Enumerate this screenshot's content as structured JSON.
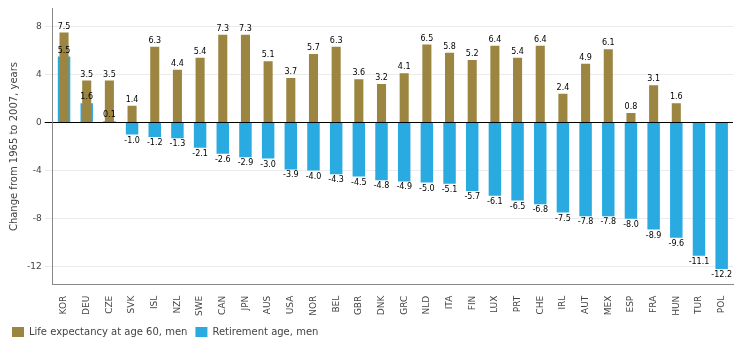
{
  "chart_data": {
    "type": "bar",
    "ylabel": "Change from 1965 to 2007, years",
    "categories": [
      "KOR",
      "DEU",
      "CZE",
      "SVK",
      "ISL",
      "NZL",
      "SWE",
      "CAN",
      "JPN",
      "AUS",
      "USA",
      "NOR",
      "BEL",
      "GBR",
      "DNK",
      "GRC",
      "NLD",
      "ITA",
      "FIN",
      "LUX",
      "PRT",
      "CHE",
      "IRL",
      "AUT",
      "MEX",
      "ESP",
      "FRA",
      "HUN",
      "TUR",
      "POL"
    ],
    "series": [
      {
        "name": "Life expectancy at age 60, men",
        "color": "#9B8540",
        "values": [
          7.5,
          3.5,
          3.5,
          1.4,
          6.3,
          4.4,
          5.4,
          7.3,
          7.3,
          5.1,
          3.7,
          5.7,
          6.3,
          3.6,
          3.2,
          4.1,
          6.5,
          5.8,
          5.2,
          6.4,
          5.4,
          6.4,
          2.4,
          4.9,
          6.1,
          0.8,
          3.1,
          1.6,
          0,
          0
        ],
        "value_labels": [
          "7.5",
          "3.5",
          "3.5",
          "1.4",
          "6.3",
          "4.4",
          "5.4",
          "7.3",
          "7.3",
          "5.1",
          "3.7",
          "5.7",
          "6.3",
          "3.6",
          "3.2",
          "4.1",
          "6.5",
          "5.8",
          "5.2",
          "6.4",
          "5.4",
          "6.4",
          "2.4",
          "4.9",
          "6.1",
          "0.8",
          "3.1",
          "1.6",
          null,
          null
        ]
      },
      {
        "name": "Retirement age, men",
        "color": "#29ABE2",
        "values": [
          5.5,
          1.6,
          0.1,
          -1.0,
          -1.2,
          -1.3,
          -2.1,
          -2.6,
          -2.9,
          -3.0,
          -3.9,
          -4.0,
          -4.3,
          -4.5,
          -4.8,
          -4.9,
          -5.0,
          -5.1,
          -5.7,
          -6.1,
          -6.5,
          -6.8,
          -7.5,
          -7.8,
          -7.8,
          -8.0,
          -8.9,
          -9.6,
          -11.1,
          -12.2
        ],
        "value_labels": [
          "5.5",
          "1.6",
          "0.1",
          "-1.0",
          "-1.2",
          "-1.3",
          "-2.1",
          "-2.6",
          "-2.9",
          "-3.0",
          "-3.9",
          "-4.0",
          "-4.3",
          "-4.5",
          "-4.8",
          "-4.9",
          "-5.0",
          "-5.1",
          "-5.7",
          "-6.1",
          "-6.5",
          "-6.8",
          "-7.5",
          "-7.8",
          "-7.8",
          "-8.0",
          "-8.9",
          "-9.6",
          "-11.1",
          "-12.2"
        ]
      }
    ],
    "ylim": [
      -13.5,
      9.5
    ],
    "yticks": [
      -12,
      -8,
      -4,
      0,
      4,
      8
    ],
    "grid": true,
    "legend": "lower left",
    "data_labels": true
  }
}
